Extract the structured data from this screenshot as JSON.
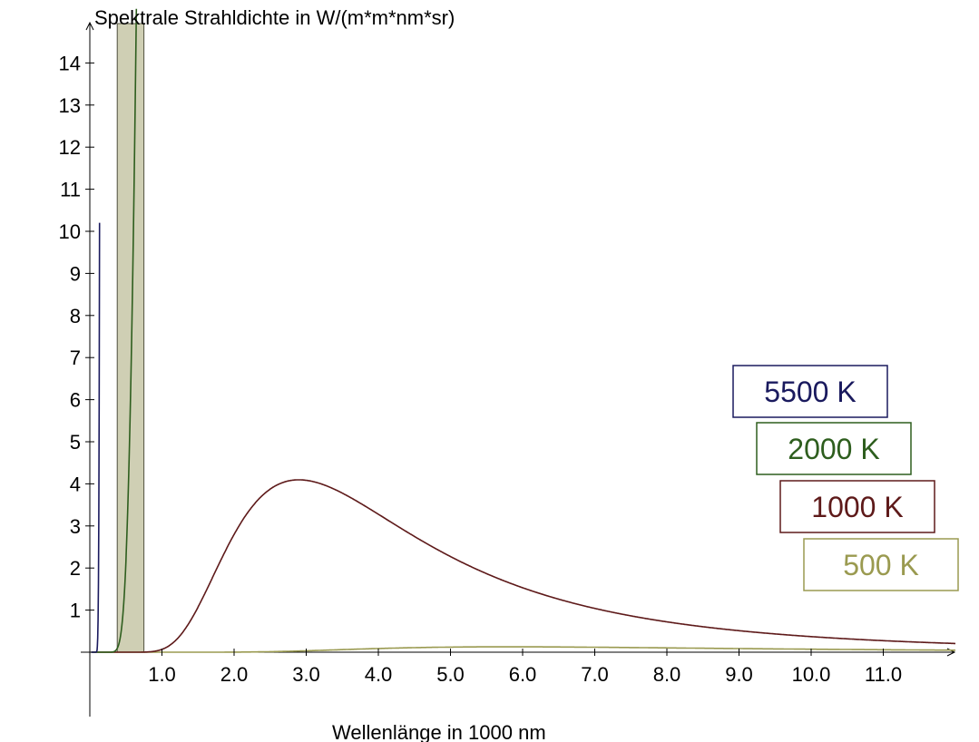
{
  "chart_data": {
    "type": "line",
    "ylabel": "Spektrale Strahldichte in W/(m*m*nm*sr)",
    "xlabel": "Wellenlänge in 1000 nm",
    "xlim": [
      0,
      12
    ],
    "ylim": [
      0,
      15
    ],
    "x_ticks": [
      "1.0",
      "2.0",
      "3.0",
      "4.0",
      "5.0",
      "6.0",
      "7.0",
      "8.0",
      "9.0",
      "10.0",
      "11.0"
    ],
    "y_ticks": [
      "1",
      "2",
      "3",
      "4",
      "5",
      "6",
      "7",
      "8",
      "9",
      "10",
      "11",
      "12",
      "13",
      "14"
    ],
    "highlight_band": {
      "from": 0.38,
      "to": 0.75,
      "color": "#cfcfb4"
    },
    "series": [
      {
        "name": "5500 K",
        "temperature": 5500,
        "color": "#1a1a5e"
      },
      {
        "name": "2000 K",
        "temperature": 2000,
        "color": "#2e5e1e"
      },
      {
        "name": "1000 K",
        "temperature": 1000,
        "color": "#5e1a1a"
      },
      {
        "name": "500 K",
        "temperature": 500,
        "color": "#9a9a50"
      }
    ]
  }
}
